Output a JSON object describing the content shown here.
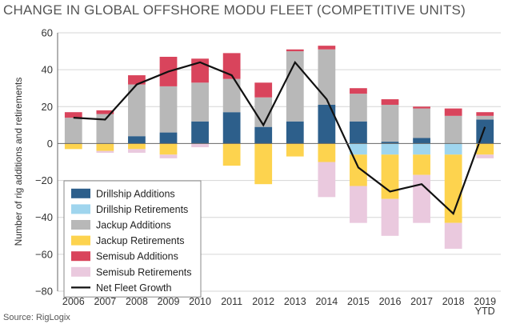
{
  "chart_data": {
    "type": "bar",
    "title": "CHANGE IN GLOBAL OFFSHORE MODU FLEET (COMPETITIVE UNITS)",
    "ylabel": "Number of rig additions and retirements",
    "xlabel": "",
    "source": "Source: RigLogix",
    "ylim": [
      -80,
      60
    ],
    "yticks": [
      "60",
      "40",
      "20",
      "0",
      "−20",
      "−40",
      "−60",
      "−80"
    ],
    "ytick_values": [
      60,
      40,
      20,
      0,
      -20,
      -40,
      -60,
      -80
    ],
    "categories": [
      "2006",
      "2007",
      "2008",
      "2009",
      "2010",
      "2011",
      "2012",
      "2013",
      "2014",
      "2015",
      "2016",
      "2017",
      "2018",
      "2019 YTD"
    ],
    "category_labels": [
      [
        "2006"
      ],
      [
        "2007"
      ],
      [
        "2008"
      ],
      [
        "2009"
      ],
      [
        "2010"
      ],
      [
        "2011"
      ],
      [
        "2012"
      ],
      [
        "2013"
      ],
      [
        "2014"
      ],
      [
        "2015"
      ],
      [
        "2016"
      ],
      [
        "2017"
      ],
      [
        "2018"
      ],
      [
        "2019",
        "YTD"
      ]
    ],
    "grid": "horizontal",
    "legend_position": "bottom-left",
    "series": [
      {
        "name": "Drillship Additions",
        "color": "#2d5f8b",
        "kind": "bar",
        "values": [
          0,
          0,
          4,
          6,
          12,
          17,
          9,
          12,
          21,
          12,
          1,
          3,
          0,
          13
        ]
      },
      {
        "name": "Drillship Retirements",
        "color": "#9fd5ee",
        "kind": "bar",
        "values": [
          0,
          0,
          0,
          0,
          0,
          0,
          0,
          0,
          0,
          -6,
          -6,
          -6,
          -6,
          0
        ]
      },
      {
        "name": "Jackup Additions",
        "color": "#b8b8b8",
        "kind": "bar",
        "values": [
          14,
          16,
          28,
          25,
          21,
          18,
          16,
          38,
          30,
          15,
          20,
          16,
          15,
          2
        ]
      },
      {
        "name": "Jackup Retirements",
        "color": "#fdd34e",
        "kind": "bar",
        "values": [
          -3,
          -4,
          -3,
          -6,
          0,
          -12,
          -22,
          -7,
          -10,
          -17,
          -24,
          -11,
          -37,
          -6
        ]
      },
      {
        "name": "Semisub Additions",
        "color": "#d9445c",
        "kind": "bar",
        "values": [
          3,
          2,
          5,
          16,
          13,
          14,
          8,
          1,
          2,
          3,
          3,
          1,
          4,
          2
        ]
      },
      {
        "name": "Semisub Retirements",
        "color": "#eac9de",
        "kind": "bar",
        "values": [
          0,
          -1,
          -2,
          -2,
          -2,
          0,
          0,
          0,
          -19,
          -20,
          -20,
          -26,
          -14,
          -2
        ]
      },
      {
        "name": "Net Fleet Growth",
        "color": "#111111",
        "kind": "line",
        "values": [
          14,
          13,
          32,
          39,
          44,
          37,
          10,
          44,
          24,
          -13,
          -26,
          -22,
          -38,
          9
        ]
      }
    ]
  }
}
